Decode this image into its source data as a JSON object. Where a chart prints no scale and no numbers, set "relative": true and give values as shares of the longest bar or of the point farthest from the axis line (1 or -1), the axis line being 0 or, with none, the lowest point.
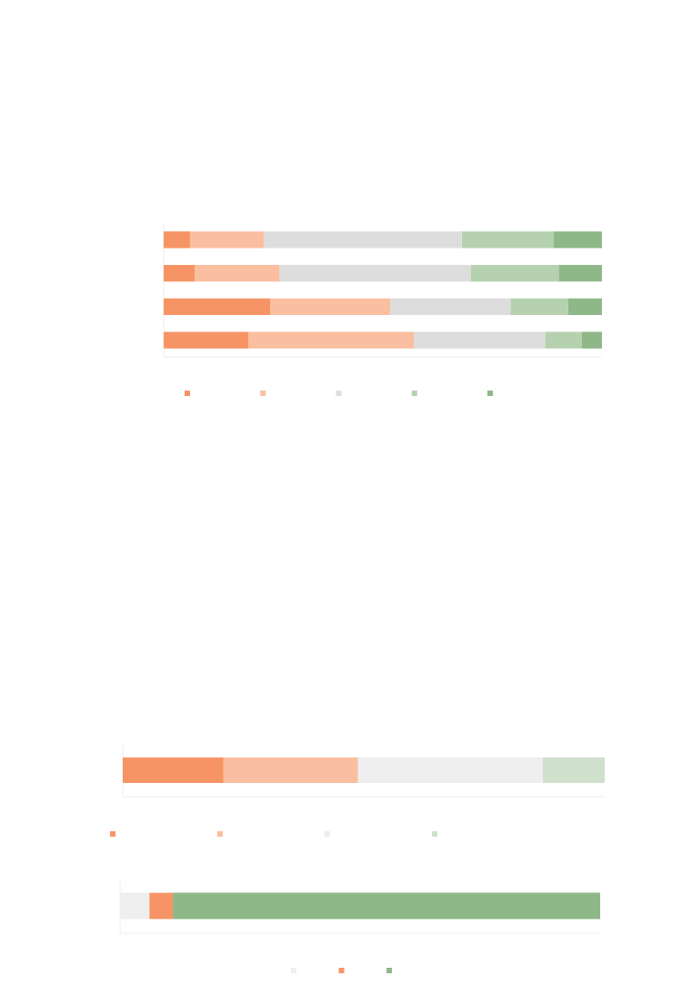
{
  "chart_data": [
    {
      "type": "bar",
      "orientation": "horizontal",
      "stacked": true,
      "relative": true,
      "categories": [
        null,
        null,
        null,
        null
      ],
      "series": [
        {
          "color": "#f79465",
          "values": [
            0.06,
            0.071,
            0.243,
            0.193
          ]
        },
        {
          "color": "#fabea0",
          "values": [
            0.168,
            0.193,
            0.274,
            0.378
          ]
        },
        {
          "color": "#dddddd",
          "values": [
            0.452,
            0.436,
            0.274,
            0.299
          ]
        },
        {
          "color": "#b5d1b0",
          "values": [
            0.21,
            0.201,
            0.131,
            0.083
          ]
        },
        {
          "color": "#8fb888",
          "values": [
            0.11,
            0.099,
            0.078,
            0.047
          ]
        }
      ]
    },
    {
      "type": "bar",
      "orientation": "horizontal",
      "stacked": true,
      "relative": true,
      "categories": [
        null
      ],
      "series": [
        {
          "color": "#f79465",
          "values": [
            0.209
          ]
        },
        {
          "color": "#fabea0",
          "values": [
            0.279
          ]
        },
        {
          "color": "#eeeeee",
          "values": [
            0.383
          ]
        },
        {
          "color": "#cfe0cc",
          "values": [
            0.129
          ]
        }
      ]
    },
    {
      "type": "bar",
      "orientation": "horizontal",
      "stacked": true,
      "relative": true,
      "categories": [
        null
      ],
      "series": [
        {
          "color": "#eeeeee",
          "values": [
            0.061
          ]
        },
        {
          "color": "#f79465",
          "values": [
            0.049
          ]
        },
        {
          "color": "#8fb888",
          "values": [
            0.89
          ]
        }
      ]
    }
  ]
}
